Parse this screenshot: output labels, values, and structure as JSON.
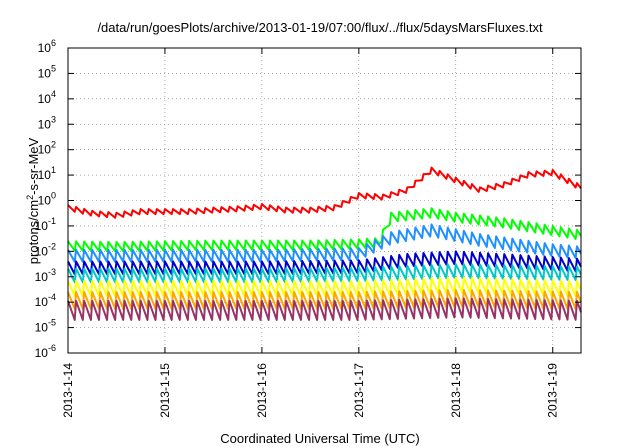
{
  "chart_data": {
    "type": "line",
    "title": "/data/run/goesPlots/archive/2013-01-19/07:00/flux/../flux/5daysMarsFluxes.txt",
    "xlabel": "Coordinated Universal Time (UTC)",
    "ylabel_prefix": "protons/cm",
    "ylabel_sup": "2",
    "ylabel_suffix": "-s-sr-MeV",
    "yscale": "log",
    "ylim": [
      1e-06,
      1000000
    ],
    "y_tick_labels": [
      {
        "base": "10",
        "exp": "-6"
      },
      {
        "base": "10",
        "exp": "-5"
      },
      {
        "base": "10",
        "exp": "-4"
      },
      {
        "base": "10",
        "exp": "-3"
      },
      {
        "base": "10",
        "exp": "-2"
      },
      {
        "base": "10",
        "exp": "-1"
      },
      {
        "base": "10",
        "exp": "0"
      },
      {
        "base": "10",
        "exp": "1"
      },
      {
        "base": "10",
        "exp": "2"
      },
      {
        "base": "10",
        "exp": "3"
      },
      {
        "base": "10",
        "exp": "4"
      },
      {
        "base": "10",
        "exp": "5"
      },
      {
        "base": "10",
        "exp": "6"
      }
    ],
    "xlim": [
      "2013-01-14T00:00",
      "2013-01-19T07:00"
    ],
    "x_tick_labels": [
      "2013-1-14",
      "2013-1-15",
      "2013-1-16",
      "2013-1-17",
      "2013-1-18",
      "2013-1-19"
    ],
    "grid": "dotted",
    "legend": "none",
    "series": [
      {
        "color": "#ff0000",
        "values": [
          [
            "2013-01-14T00:00",
            0.5
          ],
          [
            "2013-01-14T06:00",
            0.3
          ],
          [
            "2013-01-14T12:00",
            0.25
          ],
          [
            "2013-01-14T18:00",
            0.35
          ],
          [
            "2013-01-15T00:00",
            0.35
          ],
          [
            "2013-01-15T06:00",
            0.35
          ],
          [
            "2013-01-15T12:00",
            0.4
          ],
          [
            "2013-01-15T18:00",
            0.45
          ],
          [
            "2013-01-16T00:00",
            0.55
          ],
          [
            "2013-01-16T06:00",
            0.4
          ],
          [
            "2013-01-16T12:00",
            0.4
          ],
          [
            "2013-01-16T18:00",
            0.5
          ],
          [
            "2013-01-17T00:00",
            1.5
          ],
          [
            "2013-01-17T06:00",
            1.3
          ],
          [
            "2013-01-17T12:00",
            2.5
          ],
          [
            "2013-01-17T18:00",
            15
          ],
          [
            "2013-01-18T00:00",
            6
          ],
          [
            "2013-01-18T06:00",
            2.5
          ],
          [
            "2013-01-18T12:00",
            4
          ],
          [
            "2013-01-18T18:00",
            10
          ],
          [
            "2013-01-19T00:00",
            12
          ],
          [
            "2013-01-19T07:00",
            3
          ]
        ]
      },
      {
        "color": "#00ff00",
        "values": [
          [
            "2013-01-14T00:00",
            0.015
          ],
          [
            "2013-01-14T12:00",
            0.014
          ],
          [
            "2013-01-15T00:00",
            0.015
          ],
          [
            "2013-01-15T12:00",
            0.016
          ],
          [
            "2013-01-16T00:00",
            0.016
          ],
          [
            "2013-01-16T12:00",
            0.016
          ],
          [
            "2013-01-17T00:00",
            0.018
          ],
          [
            "2013-01-17T05:00",
            0.02
          ],
          [
            "2013-01-17T08:00",
            0.2
          ],
          [
            "2013-01-17T18:00",
            0.3
          ],
          [
            "2013-01-18T00:00",
            0.2
          ],
          [
            "2013-01-18T12:00",
            0.12
          ],
          [
            "2013-01-19T00:00",
            0.06
          ],
          [
            "2013-01-19T07:00",
            0.04
          ]
        ]
      },
      {
        "color": "#1e90ff",
        "values": [
          [
            "2013-01-14T00:00",
            0.006
          ],
          [
            "2013-01-15T00:00",
            0.006
          ],
          [
            "2013-01-16T00:00",
            0.006
          ],
          [
            "2013-01-17T00:00",
            0.007
          ],
          [
            "2013-01-17T08:00",
            0.03
          ],
          [
            "2013-01-17T18:00",
            0.06
          ],
          [
            "2013-01-18T06:00",
            0.025
          ],
          [
            "2013-01-19T00:00",
            0.01
          ],
          [
            "2013-01-19T07:00",
            0.008
          ]
        ]
      },
      {
        "color": "#0000cd",
        "values": [
          [
            "2013-01-14T00:00",
            0.002
          ],
          [
            "2013-01-15T00:00",
            0.002
          ],
          [
            "2013-01-16T00:00",
            0.002
          ],
          [
            "2013-01-17T00:00",
            0.0022
          ],
          [
            "2013-01-17T12:00",
            0.004
          ],
          [
            "2013-01-18T00:00",
            0.005
          ],
          [
            "2013-01-19T00:00",
            0.003
          ],
          [
            "2013-01-19T07:00",
            0.0025
          ]
        ]
      },
      {
        "color": "#00c8c8",
        "values": [
          [
            "2013-01-14T00:00",
            0.001
          ],
          [
            "2013-01-15T00:00",
            0.001
          ],
          [
            "2013-01-16T00:00",
            0.001
          ],
          [
            "2013-01-17T00:00",
            0.0011
          ],
          [
            "2013-01-18T00:00",
            0.0015
          ],
          [
            "2013-01-19T07:00",
            0.0012
          ]
        ]
      },
      {
        "color": "#ffff00",
        "values": [
          [
            "2013-01-14T00:00",
            0.0003
          ],
          [
            "2013-01-15T00:00",
            0.0003
          ],
          [
            "2013-01-16T00:00",
            0.0003
          ],
          [
            "2013-01-17T00:00",
            0.0003
          ],
          [
            "2013-01-18T00:00",
            0.0004
          ],
          [
            "2013-01-19T07:00",
            0.0003
          ]
        ]
      },
      {
        "color": "#ffa500",
        "values": [
          [
            "2013-01-14T00:00",
            0.0001
          ],
          [
            "2013-01-15T00:00",
            0.0001
          ],
          [
            "2013-01-16T00:00",
            0.0001
          ],
          [
            "2013-01-17T00:00",
            0.0001
          ],
          [
            "2013-01-18T00:00",
            0.00012
          ],
          [
            "2013-01-19T07:00",
            0.0001
          ]
        ]
      },
      {
        "color": "#993366",
        "values": [
          [
            "2013-01-14T00:00",
            4e-05
          ],
          [
            "2013-01-15T00:00",
            4e-05
          ],
          [
            "2013-01-16T00:00",
            4e-05
          ],
          [
            "2013-01-17T00:00",
            4e-05
          ],
          [
            "2013-01-18T00:00",
            5e-05
          ],
          [
            "2013-01-19T07:00",
            4e-05
          ]
        ]
      }
    ]
  }
}
